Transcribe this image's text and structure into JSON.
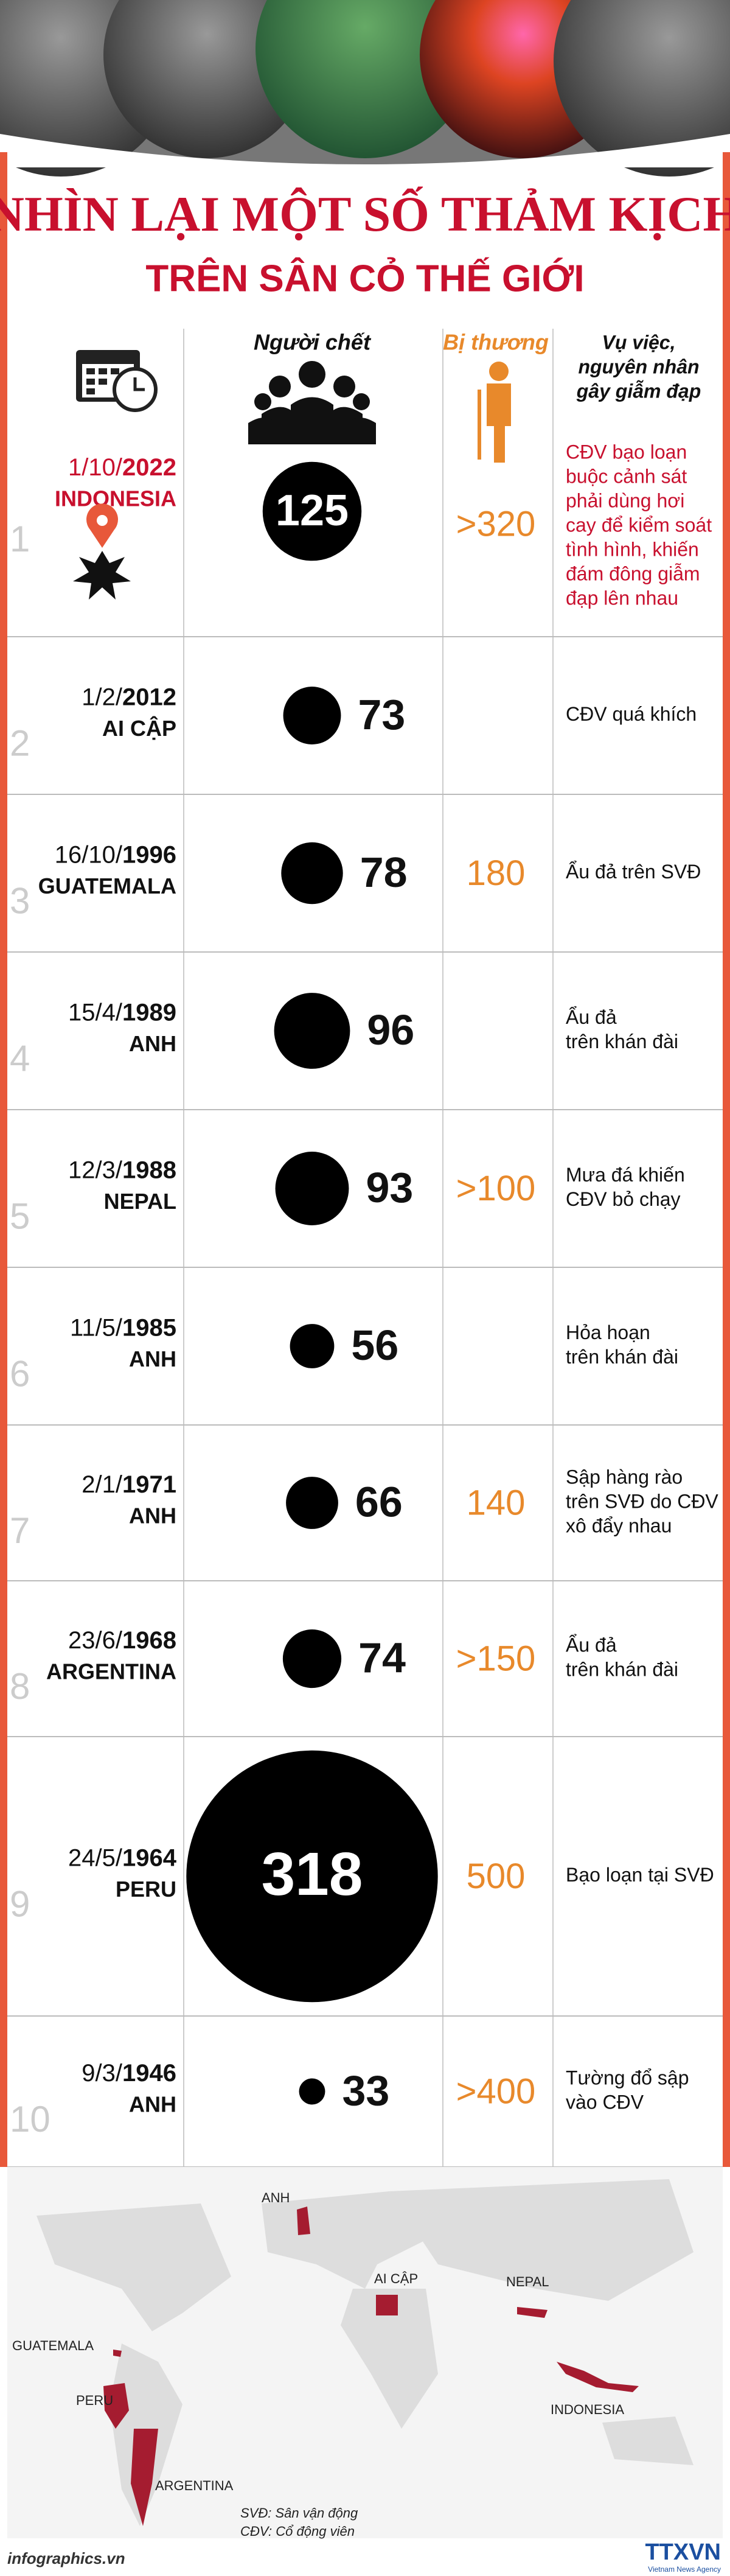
{
  "title": "NHÌN LẠI MỘT SỐ THẢM KỊCH",
  "subtitle": "TRÊN SÂN CỎ THẾ GIỚI",
  "headers": {
    "deaths": "Người chết",
    "injured": "Bị thương",
    "cause": [
      "Vụ việc,",
      "nguyên nhân",
      "gây giẫm đạp"
    ]
  },
  "rows": [
    {
      "index": 1,
      "date": "1/10/",
      "year": "2022",
      "country": "INDONESIA",
      "deaths": 125,
      "injured": ">320",
      "cause": [
        "CĐV bạo loạn",
        "buộc cảnh sát",
        "phải dùng hơi",
        "cay để kiểm soát",
        "tình hình, khiến",
        "đám đông giẫm",
        "đạp lên nhau"
      ]
    },
    {
      "index": 2,
      "date": "1/2/",
      "year": "2012",
      "country": "AI CẬP",
      "deaths": 73,
      "cause": [
        "CĐV quá khích"
      ]
    },
    {
      "index": 3,
      "date": "16/10/",
      "year": "1996",
      "country": "GUATEMALA",
      "deaths": 78,
      "injured": "180",
      "cause": [
        "Ẩu đả trên SVĐ"
      ]
    },
    {
      "index": 4,
      "date": "15/4/",
      "year": "1989",
      "country": "ANH",
      "deaths": 96,
      "cause": [
        "Ẩu đả",
        "trên khán đài"
      ]
    },
    {
      "index": 5,
      "date": "12/3/",
      "year": "1988",
      "country": "NEPAL",
      "deaths": 93,
      "injured": ">100",
      "cause": [
        "Mưa đá khiến",
        "CĐV bỏ chạy"
      ]
    },
    {
      "index": 6,
      "date": "11/5/",
      "year": "1985",
      "country": "ANH",
      "deaths": 56,
      "cause": [
        "Hỏa hoạn",
        "trên khán đài"
      ]
    },
    {
      "index": 7,
      "date": "2/1/",
      "year": "1971",
      "country": "ANH",
      "deaths": 66,
      "injured": "140",
      "cause": [
        "Sập hàng rào",
        "trên SVĐ do CĐV",
        "xô đẩy nhau"
      ]
    },
    {
      "index": 8,
      "date": "23/6/",
      "year": "1968",
      "country": "ARGENTINA",
      "deaths": 74,
      "injured": ">150",
      "cause": [
        "Ẩu đả",
        "trên khán đài"
      ]
    },
    {
      "index": 9,
      "date": "24/5/",
      "year": "1964",
      "country": "PERU",
      "deaths": 318,
      "injured": "500",
      "cause": [
        "Bạo loạn tại SVĐ"
      ]
    },
    {
      "index": 10,
      "date": "9/3/",
      "year": "1946",
      "country": "ANH",
      "deaths": 33,
      "injured": ">400",
      "cause": [
        "Tường đổ sập",
        "vào CĐV"
      ]
    }
  ],
  "map_labels": {
    "anh": "ANH",
    "egypt": "AI CẬP",
    "nepal": "NEPAL",
    "guatemala": "GUATEMALA",
    "peru": "PERU",
    "argentina": "ARGENTINA",
    "indonesia": "INDONESIA"
  },
  "footer": {
    "site": "infographics.vn",
    "notes": [
      "SVĐ: Sân vận động",
      "CĐV: Cổ động viên"
    ],
    "brand": "TTXVN",
    "brand_sub": "Vietnam News Agency"
  }
}
